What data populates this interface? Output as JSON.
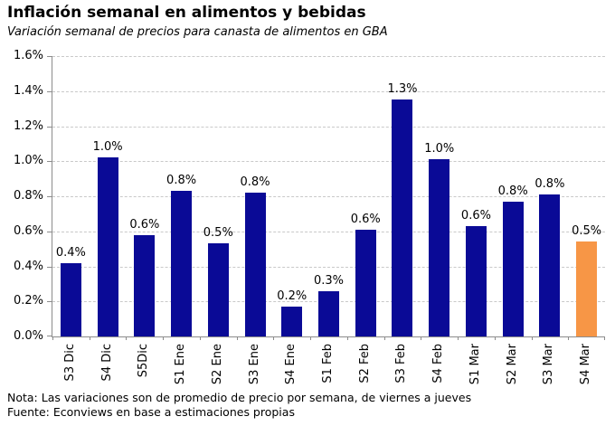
{
  "header": {
    "title": "Inflación semanal en alimentos y bebidas",
    "subtitle": "Variación semanal de precios para canasta de alimentos en GBA"
  },
  "footer": {
    "note": "Nota: Las variaciones son de promedio de precio por semana, de viernes a jueves",
    "source": "Fuente: Econviews en base a estimaciones propias"
  },
  "colors": {
    "bar": "#0a0a96",
    "highlight": "#f79646",
    "axis": "#8c8c8c",
    "gridline": "#c9c9c9",
    "text": "#000000"
  },
  "chart_data": {
    "type": "bar",
    "title": "Inflación semanal en alimentos y bebidas",
    "subtitle": "Variación semanal de precios para canasta de alimentos en GBA",
    "xlabel": "",
    "ylabel": "",
    "categories": [
      "S3 Dic",
      "S4 Dic",
      "S5Dic",
      "S1 Ene",
      "S2 Ene",
      "S3 Ene",
      "S4 Ene",
      "S1 Feb",
      "S2 Feb",
      "S3 Feb",
      "S4 Feb",
      "S1 Mar",
      "S2 Mar",
      "S3 Mar",
      "S4 Mar"
    ],
    "values": [
      0.42,
      1.02,
      0.58,
      0.83,
      0.53,
      0.82,
      0.17,
      0.26,
      0.61,
      1.35,
      1.01,
      0.63,
      0.77,
      0.81,
      0.54
    ],
    "labels": [
      "0.4%",
      "1.0%",
      "0.6%",
      "0.8%",
      "0.5%",
      "0.8%",
      "0.2%",
      "0.3%",
      "0.6%",
      "1.3%",
      "1.0%",
      "0.6%",
      "0.8%",
      "0.8%",
      "0.5%"
    ],
    "highlight_index": 14,
    "ylim": [
      0,
      1.6
    ],
    "ytick_step": 0.2,
    "yticks": [
      "0.0%",
      "0.2%",
      "0.4%",
      "0.6%",
      "0.8%",
      "1.0%",
      "1.2%",
      "1.4%",
      "1.6%"
    ],
    "grid": "horizontal-dashed",
    "legend": "none"
  }
}
